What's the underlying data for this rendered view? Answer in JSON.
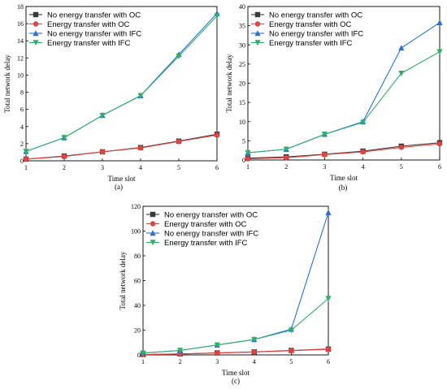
{
  "colors": {
    "no_energy_oc": "#3a3a3a",
    "energy_oc": "#e8403f",
    "no_energy_ifc": "#2a6fd6",
    "energy_ifc": "#2fb06a"
  },
  "chart_data": [
    {
      "type": "line",
      "caption": "(a)",
      "xlabel": "Time slot",
      "ylabel": "Total network delay",
      "x": [
        1,
        2,
        3,
        4,
        5,
        6
      ],
      "xlim": [
        1,
        6
      ],
      "ylim": [
        0,
        18
      ],
      "yticks": [
        0,
        2,
        4,
        6,
        8,
        10,
        12,
        14,
        16,
        18
      ],
      "legend_position": "top-left",
      "series": [
        {
          "name": "No energy transfer with OC",
          "color": "#3a3a3a",
          "marker": "square",
          "values": [
            0.2,
            0.55,
            1.05,
            1.55,
            2.3,
            3.1
          ]
        },
        {
          "name": "Energy transfer with OC",
          "color": "#e8403f",
          "marker": "circle",
          "values": [
            0.2,
            0.5,
            1.05,
            1.5,
            2.25,
            3.0
          ]
        },
        {
          "name": "No energy transfer with IFC",
          "color": "#2a6fd6",
          "marker": "triangle-up",
          "values": [
            1.1,
            2.7,
            5.3,
            7.6,
            12.4,
            17.2
          ]
        },
        {
          "name": "Energy transfer with IFC",
          "color": "#2fb06a",
          "marker": "triangle-down",
          "values": [
            1.1,
            2.7,
            5.3,
            7.6,
            12.2,
            16.9
          ]
        }
      ]
    },
    {
      "type": "line",
      "caption": "(b)",
      "xlabel": "Time slot",
      "ylabel": "Total network delay",
      "x": [
        1,
        2,
        3,
        4,
        5,
        6
      ],
      "xlim": [
        1,
        6
      ],
      "ylim": [
        0,
        40
      ],
      "yticks": [
        0,
        5,
        10,
        15,
        20,
        25,
        30,
        35,
        40
      ],
      "legend_position": "top-left",
      "series": [
        {
          "name": "No energy transfer with OC",
          "color": "#3a3a3a",
          "marker": "square",
          "values": [
            0.5,
            0.8,
            1.5,
            2.3,
            3.6,
            4.5
          ]
        },
        {
          "name": "Energy transfer with OC",
          "color": "#e8403f",
          "marker": "circle",
          "values": [
            0.3,
            0.6,
            1.4,
            2.1,
            3.3,
            4.2
          ]
        },
        {
          "name": "No energy transfer with IFC",
          "color": "#2a6fd6",
          "marker": "triangle-up",
          "values": [
            1.9,
            2.8,
            6.7,
            10.0,
            29.2,
            35.8
          ]
        },
        {
          "name": "Energy transfer with IFC",
          "color": "#2fb06a",
          "marker": "triangle-down",
          "values": [
            1.9,
            2.8,
            6.7,
            9.8,
            22.6,
            28.2
          ]
        }
      ]
    },
    {
      "type": "line",
      "caption": "(c)",
      "xlabel": "Time slot",
      "ylabel": "Total network delay",
      "x": [
        1,
        2,
        3,
        4,
        5,
        6
      ],
      "xlim": [
        1,
        6
      ],
      "ylim": [
        0,
        120
      ],
      "yticks": [
        0,
        20,
        40,
        60,
        80,
        100,
        120
      ],
      "legend_position": "top-left",
      "series": [
        {
          "name": "No energy transfer with OC",
          "color": "#3a3a3a",
          "marker": "square",
          "values": [
            0.3,
            0.8,
            1.6,
            2.4,
            3.6,
            4.7
          ]
        },
        {
          "name": "Energy transfer with OC",
          "color": "#e8403f",
          "marker": "circle",
          "values": [
            0.3,
            0.7,
            1.5,
            2.3,
            3.4,
            4.5
          ]
        },
        {
          "name": "No energy transfer with IFC",
          "color": "#2a6fd6",
          "marker": "triangle-up",
          "values": [
            1.5,
            3.6,
            8.0,
            12.4,
            20.8,
            115.0
          ]
        },
        {
          "name": "Energy transfer with IFC",
          "color": "#2fb06a",
          "marker": "triangle-down",
          "values": [
            1.5,
            3.6,
            8.0,
            12.4,
            20.0,
            45.5
          ]
        }
      ]
    }
  ]
}
